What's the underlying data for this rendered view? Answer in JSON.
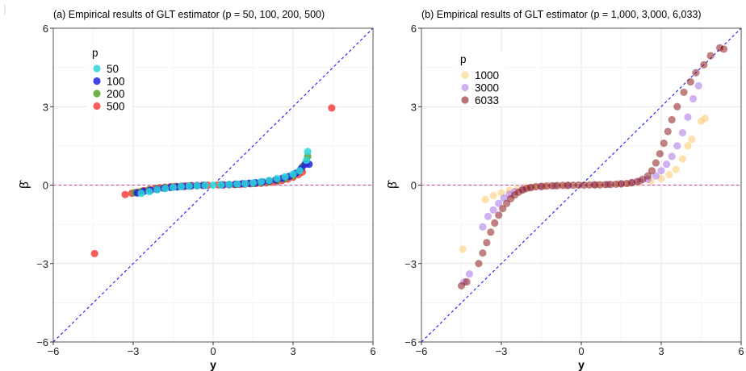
{
  "chart_data": [
    {
      "type": "scatter",
      "title": "(a) Empirical results of GLT estimator (p = 50, 100, 200, 500)",
      "xlabel": "y",
      "ylabel": "β̂",
      "xlim": [
        -6,
        6
      ],
      "ylim": [
        -6,
        6
      ],
      "xticks": [
        -6,
        -3,
        0,
        3,
        6
      ],
      "yticks": [
        -6,
        -3,
        0,
        3,
        6
      ],
      "xtick_labels": [
        "−6",
        "−3",
        "0",
        "3",
        "6"
      ],
      "ytick_labels": [
        "−6",
        "−3",
        "0",
        "3",
        "6"
      ],
      "grid": true,
      "reference_lines": [
        {
          "kind": "diagonal",
          "slope": 1,
          "intercept": 0,
          "color": "#1a1aff",
          "style": "dashed"
        },
        {
          "kind": "horizontal",
          "y": 0,
          "color": "#cc3fa0",
          "style": "dashed"
        }
      ],
      "legend": {
        "title": "p",
        "position": "top-left"
      },
      "series": [
        {
          "name": "500",
          "color": "#f8403f",
          "opacity": 0.85,
          "points": [
            [
              -4.45,
              -2.62
            ],
            [
              4.45,
              2.95
            ],
            [
              -3.3,
              -0.36
            ],
            [
              -3.05,
              -0.31
            ],
            [
              -2.85,
              -0.27
            ],
            [
              -2.6,
              -0.21
            ],
            [
              -2.4,
              -0.17
            ],
            [
              -2.2,
              -0.13
            ],
            [
              -2.0,
              -0.1
            ],
            [
              -1.8,
              -0.08
            ],
            [
              -1.6,
              -0.06
            ],
            [
              -1.4,
              -0.05
            ],
            [
              -1.2,
              -0.04
            ],
            [
              -1.0,
              -0.03
            ],
            [
              -0.8,
              -0.02
            ],
            [
              -0.6,
              -0.015
            ],
            [
              -0.4,
              -0.01
            ],
            [
              -0.2,
              -0.005
            ],
            [
              0.2,
              0.005
            ],
            [
              0.4,
              0.01
            ],
            [
              0.6,
              0.015
            ],
            [
              0.8,
              0.02
            ],
            [
              1.0,
              0.03
            ],
            [
              1.2,
              0.04
            ],
            [
              1.4,
              0.05
            ],
            [
              1.6,
              0.06
            ],
            [
              1.8,
              0.07
            ],
            [
              2.0,
              0.09
            ],
            [
              2.2,
              0.11
            ],
            [
              2.4,
              0.14
            ],
            [
              2.6,
              0.18
            ],
            [
              2.8,
              0.23
            ],
            [
              3.0,
              0.3
            ],
            [
              3.2,
              0.4
            ],
            [
              3.35,
              0.5
            ]
          ]
        },
        {
          "name": "200",
          "color": "#5aa02c",
          "opacity": 0.85,
          "points": [
            [
              -2.95,
              -0.29
            ],
            [
              -2.7,
              -0.24
            ],
            [
              -2.4,
              -0.18
            ],
            [
              -2.1,
              -0.13
            ],
            [
              -1.8,
              -0.09
            ],
            [
              -1.5,
              -0.06
            ],
            [
              -1.2,
              -0.045
            ],
            [
              -0.9,
              -0.03
            ],
            [
              -0.6,
              -0.02
            ],
            [
              -0.3,
              -0.01
            ],
            [
              0.3,
              0.01
            ],
            [
              0.6,
              0.02
            ],
            [
              0.9,
              0.03
            ],
            [
              1.2,
              0.045
            ],
            [
              1.5,
              0.06
            ],
            [
              1.8,
              0.09
            ],
            [
              2.1,
              0.13
            ],
            [
              2.4,
              0.18
            ],
            [
              2.7,
              0.25
            ],
            [
              3.0,
              0.35
            ],
            [
              3.2,
              0.5
            ],
            [
              3.35,
              0.7
            ],
            [
              3.5,
              0.85
            ],
            [
              3.55,
              1.1
            ]
          ]
        },
        {
          "name": "100",
          "color": "#2222dd",
          "opacity": 0.85,
          "points": [
            [
              -2.85,
              -0.3
            ],
            [
              -2.6,
              -0.24
            ],
            [
              -2.35,
              -0.2
            ],
            [
              -2.1,
              -0.16
            ],
            [
              -1.85,
              -0.12
            ],
            [
              -1.6,
              -0.09
            ],
            [
              -1.35,
              -0.07
            ],
            [
              -1.1,
              -0.05
            ],
            [
              -0.85,
              -0.035
            ],
            [
              -0.6,
              -0.02
            ],
            [
              -0.35,
              -0.01
            ],
            [
              0.35,
              0.01
            ],
            [
              0.6,
              0.02
            ],
            [
              0.85,
              0.035
            ],
            [
              1.1,
              0.05
            ],
            [
              1.35,
              0.07
            ],
            [
              1.6,
              0.09
            ],
            [
              1.85,
              0.12
            ],
            [
              2.1,
              0.16
            ],
            [
              2.35,
              0.2
            ],
            [
              2.6,
              0.26
            ],
            [
              2.85,
              0.33
            ],
            [
              3.1,
              0.45
            ],
            [
              3.3,
              0.62
            ],
            [
              3.45,
              0.8
            ],
            [
              3.6,
              0.8
            ]
          ]
        },
        {
          "name": "50",
          "color": "#2ed6dc",
          "opacity": 0.85,
          "points": [
            [
              -2.7,
              -0.32
            ],
            [
              -2.4,
              -0.25
            ],
            [
              -2.1,
              -0.18
            ],
            [
              -1.8,
              -0.13
            ],
            [
              -1.5,
              -0.09
            ],
            [
              -1.2,
              -0.06
            ],
            [
              -0.9,
              -0.04
            ],
            [
              -0.6,
              -0.025
            ],
            [
              -0.3,
              -0.01
            ],
            [
              0.0,
              0.0
            ],
            [
              0.3,
              0.01
            ],
            [
              0.6,
              0.025
            ],
            [
              0.9,
              0.04
            ],
            [
              1.2,
              0.06
            ],
            [
              1.5,
              0.09
            ],
            [
              1.8,
              0.13
            ],
            [
              2.1,
              0.18
            ],
            [
              2.4,
              0.25
            ],
            [
              2.7,
              0.32
            ],
            [
              3.0,
              0.42
            ],
            [
              3.25,
              0.55
            ],
            [
              3.5,
              0.95
            ],
            [
              3.55,
              1.28
            ]
          ]
        }
      ]
    },
    {
      "type": "scatter",
      "title": "(b) Empirical results of GLT estimator  (p = 1,000, 3,000, 6,033)",
      "xlabel": "y",
      "ylabel": "β̂",
      "xlim": [
        -6,
        6
      ],
      "ylim": [
        -6,
        6
      ],
      "xticks": [
        -6,
        -3,
        0,
        3,
        6
      ],
      "yticks": [
        -6,
        -3,
        0,
        3,
        6
      ],
      "xtick_labels": [
        "−6",
        "−3",
        "0",
        "3",
        "6"
      ],
      "ytick_labels": [
        "−6",
        "−3",
        "0",
        "3",
        "6"
      ],
      "grid": true,
      "reference_lines": [
        {
          "kind": "diagonal",
          "slope": 1,
          "intercept": 0,
          "color": "#1a1aff",
          "style": "dashed"
        },
        {
          "kind": "horizontal",
          "y": 0,
          "color": "#cc3fa0",
          "style": "dashed"
        }
      ],
      "legend": {
        "title": "p",
        "position": "top-left"
      },
      "series": [
        {
          "name": "1000",
          "color": "#ffcc7a",
          "opacity": 0.6,
          "points": [
            [
              -4.45,
              -2.45
            ],
            [
              -3.6,
              -0.55
            ],
            [
              -3.3,
              -0.4
            ],
            [
              -3.0,
              -0.3
            ],
            [
              -2.7,
              -0.2
            ],
            [
              -2.4,
              -0.14
            ],
            [
              -2.1,
              -0.1
            ],
            [
              -1.8,
              -0.07
            ],
            [
              -1.4,
              -0.05
            ],
            [
              -1.0,
              -0.03
            ],
            [
              -0.6,
              -0.02
            ],
            [
              0.6,
              0.02
            ],
            [
              1.0,
              0.03
            ],
            [
              1.4,
              0.05
            ],
            [
              1.8,
              0.07
            ],
            [
              2.2,
              0.1
            ],
            [
              2.6,
              0.15
            ],
            [
              3.0,
              0.25
            ],
            [
              3.3,
              0.4
            ],
            [
              3.55,
              0.6
            ],
            [
              3.8,
              1.0
            ],
            [
              4.0,
              1.5
            ],
            [
              4.15,
              1.75
            ],
            [
              4.5,
              2.45
            ],
            [
              4.65,
              2.55
            ]
          ]
        },
        {
          "name": "3000",
          "color": "#b07fe8",
          "opacity": 0.6,
          "points": [
            [
              -4.4,
              -3.7
            ],
            [
              -4.2,
              -3.4
            ],
            [
              -3.7,
              -1.6
            ],
            [
              -3.5,
              -1.2
            ],
            [
              -3.3,
              -0.95
            ],
            [
              -3.1,
              -0.7
            ],
            [
              -2.9,
              -0.5
            ],
            [
              -2.7,
              -0.35
            ],
            [
              -2.5,
              -0.25
            ],
            [
              -2.2,
              -0.16
            ],
            [
              -1.9,
              -0.1
            ],
            [
              -1.5,
              -0.06
            ],
            [
              -1.0,
              -0.03
            ],
            [
              -0.5,
              -0.015
            ],
            [
              0.5,
              0.015
            ],
            [
              1.0,
              0.03
            ],
            [
              1.5,
              0.06
            ],
            [
              1.9,
              0.1
            ],
            [
              2.2,
              0.15
            ],
            [
              2.5,
              0.22
            ],
            [
              2.8,
              0.35
            ],
            [
              3.0,
              0.55
            ],
            [
              3.2,
              0.8
            ],
            [
              3.4,
              1.1
            ],
            [
              3.6,
              1.5
            ],
            [
              3.8,
              2.0
            ],
            [
              4.0,
              2.6
            ],
            [
              4.2,
              3.3
            ],
            [
              4.4,
              3.8
            ]
          ]
        },
        {
          "name": "6033",
          "color": "#8b1a1a",
          "opacity": 0.55,
          "points": [
            [
              -4.5,
              -3.85
            ],
            [
              -4.3,
              -3.7
            ],
            [
              -3.85,
              -3.0
            ],
            [
              -3.7,
              -2.6
            ],
            [
              -3.55,
              -2.2
            ],
            [
              -3.4,
              -1.8
            ],
            [
              -3.25,
              -1.45
            ],
            [
              -3.1,
              -1.15
            ],
            [
              -2.95,
              -0.9
            ],
            [
              -2.8,
              -0.7
            ],
            [
              -2.65,
              -0.52
            ],
            [
              -2.5,
              -0.38
            ],
            [
              -2.35,
              -0.27
            ],
            [
              -2.2,
              -0.19
            ],
            [
              -2.05,
              -0.13
            ],
            [
              -1.9,
              -0.09
            ],
            [
              -1.7,
              -0.06
            ],
            [
              -1.5,
              -0.045
            ],
            [
              -1.3,
              -0.035
            ],
            [
              -1.1,
              -0.025
            ],
            [
              -0.9,
              -0.018
            ],
            [
              -0.7,
              -0.012
            ],
            [
              -0.5,
              -0.008
            ],
            [
              -0.3,
              -0.004
            ],
            [
              -0.1,
              -0.001
            ],
            [
              0.1,
              0.001
            ],
            [
              0.3,
              0.004
            ],
            [
              0.5,
              0.008
            ],
            [
              0.7,
              0.012
            ],
            [
              0.9,
              0.018
            ],
            [
              1.1,
              0.025
            ],
            [
              1.3,
              0.035
            ],
            [
              1.5,
              0.045
            ],
            [
              1.7,
              0.06
            ],
            [
              1.9,
              0.09
            ],
            [
              2.1,
              0.14
            ],
            [
              2.3,
              0.22
            ],
            [
              2.5,
              0.35
            ],
            [
              2.65,
              0.55
            ],
            [
              2.8,
              0.85
            ],
            [
              2.95,
              1.2
            ],
            [
              3.1,
              1.6
            ],
            [
              3.25,
              2.05
            ],
            [
              3.4,
              2.5
            ],
            [
              3.6,
              3.0
            ],
            [
              3.85,
              3.55
            ],
            [
              4.1,
              3.95
            ],
            [
              4.3,
              4.3
            ],
            [
              4.6,
              4.6
            ],
            [
              4.85,
              4.95
            ],
            [
              5.2,
              5.25
            ],
            [
              5.35,
              5.2
            ]
          ]
        }
      ]
    }
  ]
}
